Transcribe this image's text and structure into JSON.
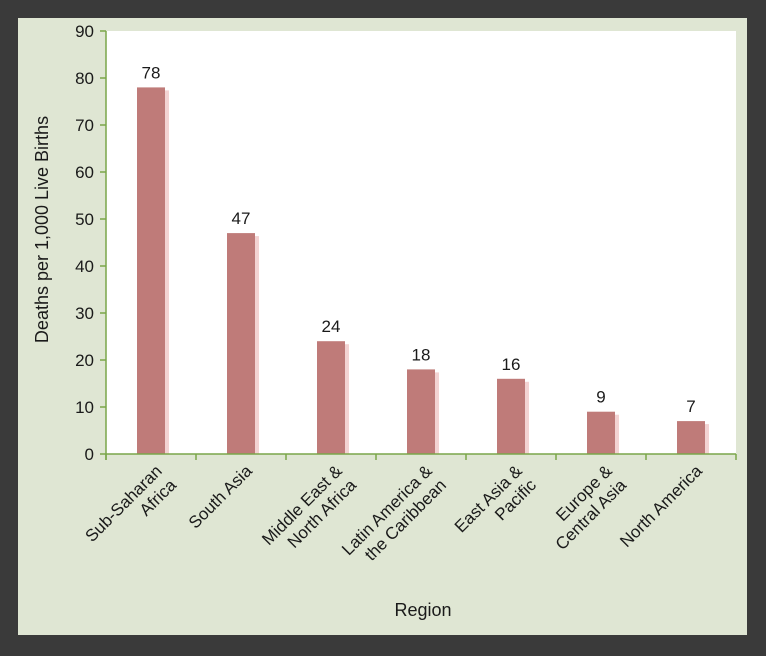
{
  "colors": {
    "frame": "#3a3a3a",
    "panel": "#dfe6d3",
    "plot_background": "#ffffff",
    "axis": "#7aa64a",
    "bar": "#bf7b79",
    "bar_shadow": "#f3d3d3"
  },
  "chart_data": {
    "type": "bar",
    "title": "",
    "xlabel": "Region",
    "ylabel": "Deaths per 1,000 Live Births",
    "ylim": [
      0,
      90
    ],
    "yticks": [
      0,
      10,
      20,
      30,
      40,
      50,
      60,
      70,
      80,
      90
    ],
    "grid": false,
    "legend": "none",
    "categories": [
      [
        "Sub-Saharan",
        "Africa"
      ],
      [
        "South Asia"
      ],
      [
        "Middle East &",
        "North Africa"
      ],
      [
        "Latin America &",
        "the Caribbean"
      ],
      [
        "East Asia &",
        "Pacific"
      ],
      [
        "Europe &",
        "Central Asia"
      ],
      [
        "North America"
      ]
    ],
    "values": [
      78,
      47,
      24,
      18,
      16,
      9,
      7
    ]
  }
}
